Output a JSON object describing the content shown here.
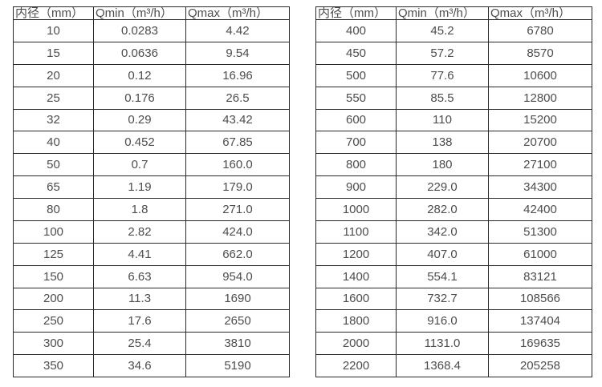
{
  "page": {
    "background": "#ffffff",
    "text_color": "#4d4d4d",
    "border_color": "#2a2a2a"
  },
  "tables": [
    {
      "name": "flow-table-small-diameters",
      "headers": [
        "内径（mm）",
        "Qmin（m³/h）",
        "Qmax（m³/h）"
      ],
      "rows": [
        [
          "10",
          "0.0283",
          "4.42"
        ],
        [
          "15",
          "0.0636",
          "9.54"
        ],
        [
          "20",
          "0.12",
          "16.96"
        ],
        [
          "25",
          "0.176",
          "26.5"
        ],
        [
          "32",
          "0.29",
          "43.42"
        ],
        [
          "40",
          "0.452",
          "67.85"
        ],
        [
          "50",
          "0.7",
          "160.0"
        ],
        [
          "65",
          "1.19",
          "179.0"
        ],
        [
          "80",
          "1.8",
          "271.0"
        ],
        [
          "100",
          "2.82",
          "424.0"
        ],
        [
          "125",
          "4.41",
          "662.0"
        ],
        [
          "150",
          "6.63",
          "954.0"
        ],
        [
          "200",
          "11.3",
          "1690"
        ],
        [
          "250",
          "17.6",
          "2650"
        ],
        [
          "300",
          "25.4",
          "3810"
        ],
        [
          "350",
          "34.6",
          "5190"
        ]
      ]
    },
    {
      "name": "flow-table-large-diameters",
      "headers": [
        "内径（mm）",
        "Qmin（m³/h）",
        "Qmax（m³/h）"
      ],
      "rows": [
        [
          "400",
          "45.2",
          "6780"
        ],
        [
          "450",
          "57.2",
          "8570"
        ],
        [
          "500",
          "77.6",
          "10600"
        ],
        [
          "550",
          "85.5",
          "12800"
        ],
        [
          "600",
          "110",
          "15200"
        ],
        [
          "700",
          "138",
          "20700"
        ],
        [
          "800",
          "180",
          "27100"
        ],
        [
          "900",
          "229.0",
          "34300"
        ],
        [
          "1000",
          "282.0",
          "42400"
        ],
        [
          "1100",
          "342.0",
          "51300"
        ],
        [
          "1200",
          "407.0",
          "61000"
        ],
        [
          "1400",
          "554.1",
          "83121"
        ],
        [
          "1600",
          "732.7",
          "108566"
        ],
        [
          "1800",
          "916.0",
          "137404"
        ],
        [
          "2000",
          "1131.0",
          "169635"
        ],
        [
          "2200",
          "1368.4",
          "205258"
        ]
      ]
    }
  ]
}
